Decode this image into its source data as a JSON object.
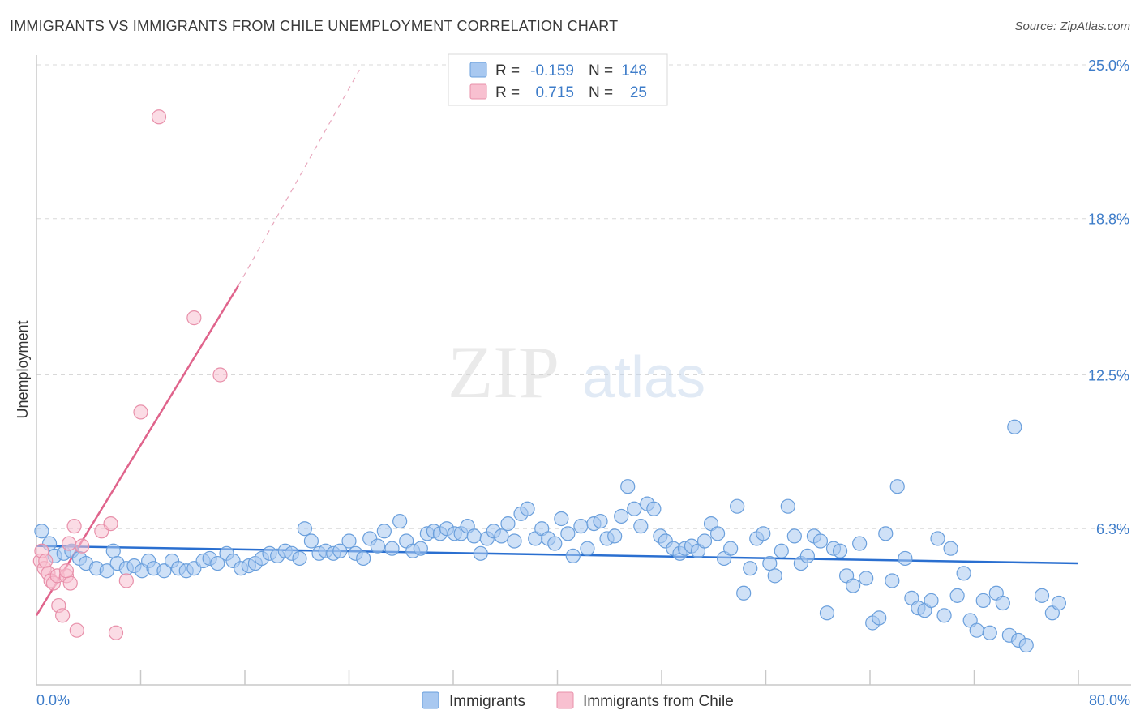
{
  "header": {
    "title": "IMMIGRANTS VS IMMIGRANTS FROM CHILE UNEMPLOYMENT CORRELATION CHART",
    "source": "Source: ZipAtlas.com"
  },
  "watermark": {
    "zip": "ZIP",
    "atlas": "atlas"
  },
  "colors": {
    "immigrants_fill": "#a8c8f0",
    "immigrants_stroke": "#6a9fdc",
    "immigrants_line": "#2a6fd0",
    "chile_fill": "#f8c0d0",
    "chile_stroke": "#e890aa",
    "chile_line": "#e0648c",
    "grid": "#d8d8d8",
    "tick_text": "#3d7cc9"
  },
  "legend": {
    "row1": {
      "r_label": "R =",
      "r_value": "-0.159",
      "n_label": "N =",
      "n_value": "148"
    },
    "row2": {
      "r_label": "R =",
      "r_value": "0.715",
      "n_label": "N =",
      "n_value": "25"
    }
  },
  "chart_data": {
    "type": "scatter",
    "title": "IMMIGRANTS VS IMMIGRANTS FROM CHILE UNEMPLOYMENT CORRELATION CHART",
    "xlabel": "",
    "ylabel": "Unemployment",
    "xlim": [
      0,
      80
    ],
    "ylim": [
      0,
      25
    ],
    "x_tick_labels": [
      "0.0%",
      "80.0%"
    ],
    "y_ticks": [
      {
        "value": 6.3,
        "label": "6.3%"
      },
      {
        "value": 12.5,
        "label": "12.5%"
      },
      {
        "value": 18.8,
        "label": "18.8%"
      },
      {
        "value": 25.0,
        "label": "25.0%"
      }
    ],
    "grid": true,
    "legend_position": "top-center",
    "series": [
      {
        "name": "Immigrants",
        "r": -0.159,
        "n": 148,
        "trend": {
          "x": [
            0,
            80
          ],
          "y": [
            5.6,
            4.9
          ]
        },
        "points": [
          [
            0.4,
            6.2
          ],
          [
            1.0,
            5.7
          ],
          [
            1.4,
            5.2
          ],
          [
            2.1,
            5.3
          ],
          [
            2.7,
            5.4
          ],
          [
            3.3,
            5.1
          ],
          [
            3.8,
            4.9
          ],
          [
            4.6,
            4.7
          ],
          [
            5.4,
            4.6
          ],
          [
            5.9,
            5.4
          ],
          [
            6.2,
            4.9
          ],
          [
            6.9,
            4.7
          ],
          [
            7.5,
            4.8
          ],
          [
            8.1,
            4.6
          ],
          [
            8.6,
            5.0
          ],
          [
            9.0,
            4.7
          ],
          [
            9.8,
            4.6
          ],
          [
            10.4,
            5.0
          ],
          [
            10.9,
            4.7
          ],
          [
            11.5,
            4.6
          ],
          [
            12.1,
            4.7
          ],
          [
            12.8,
            5.0
          ],
          [
            13.3,
            5.1
          ],
          [
            13.9,
            4.9
          ],
          [
            14.6,
            5.3
          ],
          [
            15.1,
            5.0
          ],
          [
            15.7,
            4.7
          ],
          [
            16.3,
            4.8
          ],
          [
            16.8,
            4.9
          ],
          [
            17.3,
            5.1
          ],
          [
            17.9,
            5.3
          ],
          [
            18.5,
            5.2
          ],
          [
            19.1,
            5.4
          ],
          [
            19.6,
            5.3
          ],
          [
            20.2,
            5.1
          ],
          [
            20.6,
            6.3
          ],
          [
            21.1,
            5.8
          ],
          [
            21.7,
            5.3
          ],
          [
            22.2,
            5.4
          ],
          [
            22.8,
            5.3
          ],
          [
            23.3,
            5.4
          ],
          [
            24.0,
            5.8
          ],
          [
            24.5,
            5.3
          ],
          [
            25.1,
            5.1
          ],
          [
            25.6,
            5.9
          ],
          [
            26.2,
            5.6
          ],
          [
            26.7,
            6.2
          ],
          [
            27.3,
            5.5
          ],
          [
            27.9,
            6.6
          ],
          [
            28.4,
            5.8
          ],
          [
            28.9,
            5.4
          ],
          [
            29.5,
            5.5
          ],
          [
            30.0,
            6.1
          ],
          [
            30.5,
            6.2
          ],
          [
            31.0,
            6.1
          ],
          [
            31.5,
            6.3
          ],
          [
            32.1,
            6.1
          ],
          [
            32.6,
            6.1
          ],
          [
            33.1,
            6.4
          ],
          [
            33.6,
            6.0
          ],
          [
            34.1,
            5.3
          ],
          [
            34.6,
            5.9
          ],
          [
            35.1,
            6.2
          ],
          [
            35.7,
            6.0
          ],
          [
            36.2,
            6.5
          ],
          [
            36.7,
            5.8
          ],
          [
            37.2,
            6.9
          ],
          [
            37.7,
            7.1
          ],
          [
            38.3,
            5.9
          ],
          [
            38.8,
            6.3
          ],
          [
            39.3,
            5.9
          ],
          [
            39.8,
            5.7
          ],
          [
            40.3,
            6.7
          ],
          [
            40.8,
            6.1
          ],
          [
            41.2,
            5.2
          ],
          [
            41.8,
            6.4
          ],
          [
            42.3,
            5.5
          ],
          [
            42.8,
            6.5
          ],
          [
            43.3,
            6.6
          ],
          [
            43.8,
            5.9
          ],
          [
            44.4,
            6.0
          ],
          [
            44.9,
            6.8
          ],
          [
            45.4,
            8.0
          ],
          [
            45.9,
            7.1
          ],
          [
            46.4,
            6.4
          ],
          [
            46.9,
            7.3
          ],
          [
            47.4,
            7.1
          ],
          [
            47.9,
            6.0
          ],
          [
            48.3,
            5.8
          ],
          [
            48.9,
            5.5
          ],
          [
            49.4,
            5.3
          ],
          [
            49.8,
            5.5
          ],
          [
            50.3,
            5.6
          ],
          [
            50.8,
            5.4
          ],
          [
            51.3,
            5.8
          ],
          [
            51.8,
            6.5
          ],
          [
            52.3,
            6.1
          ],
          [
            52.8,
            5.1
          ],
          [
            53.3,
            5.5
          ],
          [
            53.8,
            7.2
          ],
          [
            54.3,
            3.7
          ],
          [
            54.8,
            4.7
          ],
          [
            55.3,
            5.9
          ],
          [
            55.8,
            6.1
          ],
          [
            56.3,
            4.9
          ],
          [
            56.7,
            4.4
          ],
          [
            57.2,
            5.4
          ],
          [
            57.7,
            7.2
          ],
          [
            58.2,
            6.0
          ],
          [
            58.7,
            4.9
          ],
          [
            59.2,
            5.2
          ],
          [
            59.7,
            6.0
          ],
          [
            60.2,
            5.8
          ],
          [
            60.7,
            2.9
          ],
          [
            61.2,
            5.5
          ],
          [
            61.7,
            5.4
          ],
          [
            62.2,
            4.4
          ],
          [
            62.7,
            4.0
          ],
          [
            63.2,
            5.7
          ],
          [
            63.7,
            4.3
          ],
          [
            64.2,
            2.5
          ],
          [
            64.7,
            2.7
          ],
          [
            65.2,
            6.1
          ],
          [
            65.7,
            4.2
          ],
          [
            66.1,
            8.0
          ],
          [
            66.7,
            5.1
          ],
          [
            67.2,
            3.5
          ],
          [
            67.7,
            3.1
          ],
          [
            68.2,
            3.0
          ],
          [
            68.7,
            3.4
          ],
          [
            69.2,
            5.9
          ],
          [
            69.7,
            2.8
          ],
          [
            70.2,
            5.5
          ],
          [
            70.7,
            3.6
          ],
          [
            71.2,
            4.5
          ],
          [
            71.7,
            2.6
          ],
          [
            72.2,
            2.2
          ],
          [
            72.7,
            3.4
          ],
          [
            73.2,
            2.1
          ],
          [
            73.7,
            3.7
          ],
          [
            74.2,
            3.3
          ],
          [
            74.7,
            2.0
          ],
          [
            75.1,
            10.4
          ],
          [
            75.4,
            1.8
          ],
          [
            76.0,
            1.6
          ],
          [
            77.2,
            3.6
          ],
          [
            78.0,
            2.9
          ],
          [
            78.5,
            3.3
          ]
        ]
      },
      {
        "name": "Immigrants from Chile",
        "r": 0.715,
        "n": 25,
        "trend": {
          "x": [
            0,
            15.5
          ],
          "y": [
            2.8,
            16.1
          ]
        },
        "trend_extended": {
          "x": [
            15.5,
            24.8
          ],
          "y": [
            16.1,
            24.8
          ]
        },
        "points": [
          [
            0.3,
            5.0
          ],
          [
            0.4,
            5.4
          ],
          [
            0.6,
            4.7
          ],
          [
            0.7,
            5.0
          ],
          [
            0.9,
            4.5
          ],
          [
            1.1,
            4.2
          ],
          [
            1.3,
            4.1
          ],
          [
            1.6,
            4.4
          ],
          [
            1.7,
            3.2
          ],
          [
            2.0,
            2.8
          ],
          [
            2.3,
            4.4
          ],
          [
            2.5,
            5.7
          ],
          [
            2.6,
            4.1
          ],
          [
            2.9,
            6.4
          ],
          [
            3.1,
            2.2
          ],
          [
            3.5,
            5.6
          ],
          [
            5.0,
            6.2
          ],
          [
            5.7,
            6.5
          ],
          [
            6.1,
            2.1
          ],
          [
            6.9,
            4.2
          ],
          [
            8.0,
            11.0
          ],
          [
            9.4,
            22.9
          ],
          [
            12.1,
            14.8
          ],
          [
            14.1,
            12.5
          ],
          [
            2.3,
            4.6
          ]
        ]
      }
    ]
  },
  "bottom_legend": {
    "items": [
      {
        "label": "Immigrants"
      },
      {
        "label": "Immigrants from Chile"
      }
    ]
  }
}
